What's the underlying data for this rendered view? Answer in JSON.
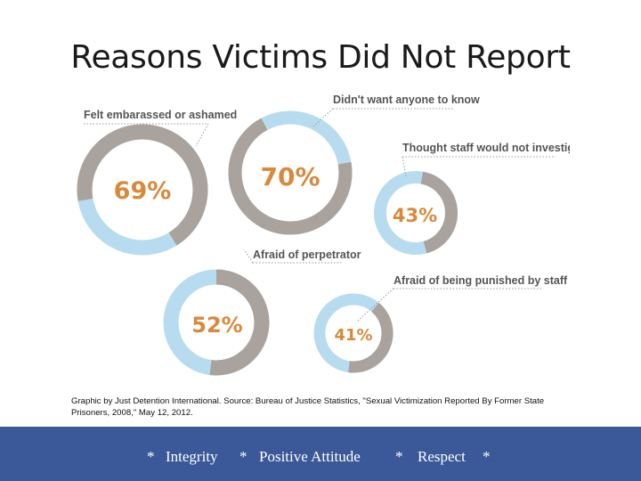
{
  "title": "Reasons Victims Did Not Report",
  "chart_data": {
    "type": "pie",
    "categories": [
      "Felt embarassed or ashamed",
      "Didn't want anyone to know",
      "Thought staff would not investigate",
      "Afraid of perpetrator",
      "Afraid of being punished by staff"
    ],
    "values": [
      69,
      70,
      43,
      52,
      41
    ],
    "value_labels": [
      "69%",
      "70%",
      "43%",
      "52%",
      "41%"
    ],
    "unit": "%",
    "style": "donut",
    "colors": {
      "share": "#a9a29d",
      "remainder": "#b8dcef",
      "label": "#d9893b"
    }
  },
  "source_note": "Graphic by Just Detention International. Source: Bureau of Justice Statistics, \"Sexual Victimization Reported By Former State Prisoners, 2008,\" May 12, 2012.",
  "footer": {
    "items": [
      "*",
      "Integrity",
      "*",
      "Positive Attitude",
      "*",
      "Respect",
      "*"
    ],
    "background": "#3b5998"
  }
}
